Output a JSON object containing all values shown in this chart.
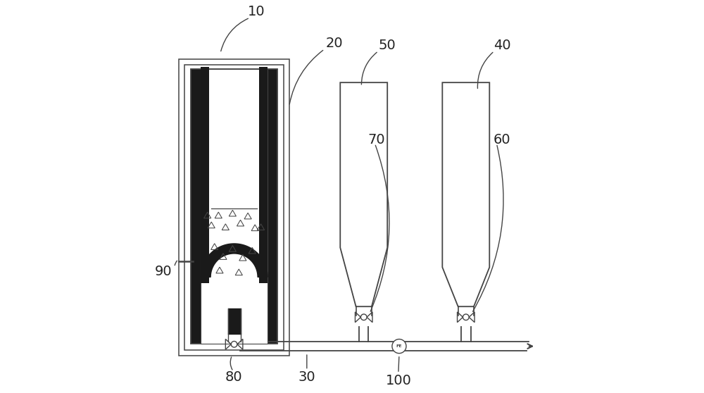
{
  "bg_color": "#ffffff",
  "line_color": "#444444",
  "black_fill": "#1a1a1a",
  "label_color": "#222222",
  "label_fontsize": 14
}
